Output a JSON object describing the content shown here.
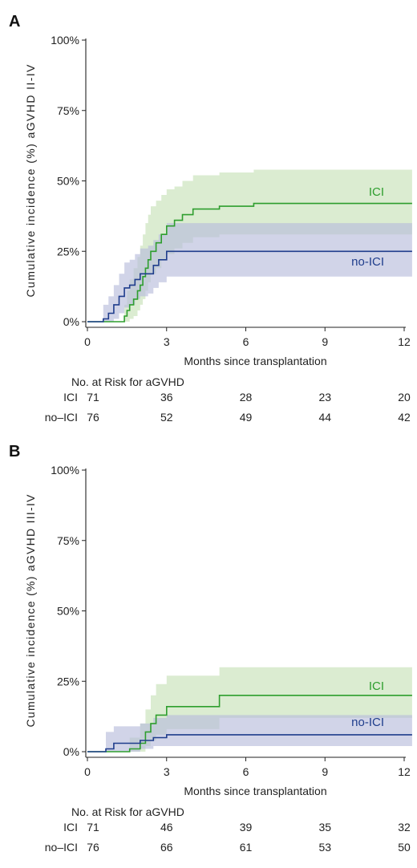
{
  "chart_data": [
    {
      "type": "line",
      "panel": "A",
      "ylabel": "Cumulative incidence (%) aGVHD II-IV",
      "xlabel": "Months since transplantation",
      "xlim": [
        0,
        12
      ],
      "ylim": [
        0,
        100
      ],
      "xticks": [
        "0",
        "3",
        "6",
        "9",
        "12"
      ],
      "yticks": [
        "0%",
        "25%",
        "50%",
        "75%",
        "100%"
      ],
      "colors": {
        "ICI": "#2e9e2e",
        "no-ICI": "#1f3d8c",
        "ICI_band": "#cfe6c2",
        "noICI_band": "#b9bddb"
      },
      "series": [
        {
          "name": "ICI",
          "step_x": [
            0,
            1.4,
            1.5,
            1.6,
            1.75,
            1.9,
            2.0,
            2.1,
            2.2,
            2.3,
            2.4,
            2.6,
            2.8,
            3.0,
            3.3,
            3.6,
            4.0,
            5.0,
            6.3,
            12.3
          ],
          "step_y": [
            0,
            2,
            4,
            6,
            8,
            11,
            13,
            16,
            19,
            22,
            25,
            28,
            31,
            34,
            36,
            38,
            40,
            41,
            42,
            42
          ],
          "ci_lower": [
            0,
            0,
            0,
            1,
            2,
            4,
            6,
            8,
            11,
            14,
            17,
            19,
            22,
            24,
            26,
            28,
            30,
            31,
            31,
            31
          ],
          "ci_upper": [
            0,
            6,
            11,
            15,
            19,
            23,
            27,
            31,
            35,
            38,
            41,
            43,
            45,
            47,
            48,
            50,
            52,
            53,
            54,
            54
          ]
        },
        {
          "name": "no-ICI",
          "step_x": [
            0,
            0.6,
            0.8,
            1.0,
            1.2,
            1.4,
            1.6,
            1.8,
            2.0,
            2.3,
            2.5,
            2.7,
            3.0,
            12.3
          ],
          "step_y": [
            0,
            1,
            3,
            6,
            9,
            12,
            13,
            15,
            17,
            17,
            20,
            22,
            25,
            25
          ],
          "ci_lower": [
            0,
            0,
            0,
            1,
            3,
            5,
            6,
            8,
            9,
            10,
            12,
            14,
            16,
            16
          ],
          "ci_upper": [
            0,
            6,
            9,
            13,
            17,
            21,
            22,
            24,
            26,
            27,
            29,
            31,
            35,
            35
          ]
        }
      ],
      "risk_table": {
        "title": "No. at Risk for aGVHD",
        "groups": [
          {
            "label": "ICI",
            "values": [
              "71",
              "36",
              "28",
              "23",
              "20"
            ]
          },
          {
            "label": "no–ICI",
            "values": [
              "76",
              "52",
              "49",
              "44",
              "42"
            ]
          }
        ]
      }
    },
    {
      "type": "line",
      "panel": "B",
      "ylabel": "Cumulative incidence (%) aGVHD III-IV",
      "xlabel": "Months since transplantation",
      "xlim": [
        0,
        12
      ],
      "ylim": [
        0,
        100
      ],
      "xticks": [
        "0",
        "3",
        "6",
        "9",
        "12"
      ],
      "yticks": [
        "0%",
        "25%",
        "50%",
        "75%",
        "100%"
      ],
      "colors": {
        "ICI": "#2e9e2e",
        "no-ICI": "#1f3d8c",
        "ICI_band": "#cfe6c2",
        "noICI_band": "#b9bddb"
      },
      "series": [
        {
          "name": "ICI",
          "step_x": [
            0,
            1.6,
            2.0,
            2.2,
            2.4,
            2.6,
            3.0,
            5.0,
            12.3
          ],
          "step_y": [
            0,
            1,
            3,
            7,
            10,
            13,
            16,
            20,
            20
          ],
          "ci_lower": [
            0,
            0,
            0,
            2,
            4,
            6,
            8,
            12,
            12
          ],
          "ci_upper": [
            0,
            5,
            10,
            15,
            20,
            24,
            27,
            30,
            30
          ]
        },
        {
          "name": "no-ICI",
          "step_x": [
            0,
            0.7,
            1.0,
            1.5,
            2.0,
            2.5,
            3.0,
            12.3
          ],
          "step_y": [
            0,
            1,
            3,
            3,
            4,
            5,
            6,
            6
          ],
          "ci_lower": [
            0,
            0,
            0,
            0,
            1,
            2,
            2,
            2
          ],
          "ci_upper": [
            0,
            7,
            9,
            9,
            10,
            12,
            13,
            13
          ]
        }
      ],
      "risk_table": {
        "title": "No. at Risk for aGVHD",
        "groups": [
          {
            "label": "ICI",
            "values": [
              "71",
              "46",
              "39",
              "35",
              "32"
            ]
          },
          {
            "label": "no–ICI",
            "values": [
              "76",
              "66",
              "61",
              "53",
              "50"
            ]
          }
        ]
      }
    }
  ]
}
